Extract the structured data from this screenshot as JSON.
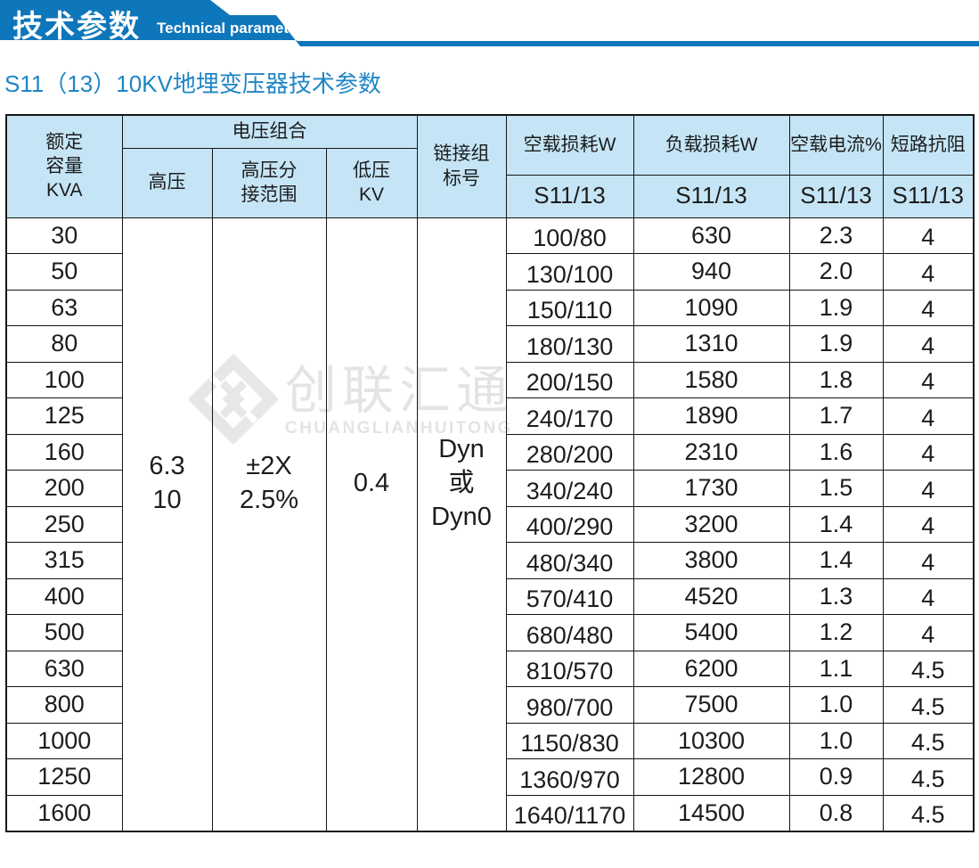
{
  "banner": {
    "title_cn": "技术参数",
    "title_en": "Technical parameter"
  },
  "page_title": "S11（13）10KV地埋变压器技术参数",
  "watermark": {
    "logo": "diamond-logo",
    "text_cn": "创联汇通",
    "text_en": "CHUANGLIANHUITONG"
  },
  "colors": {
    "banner_blue": "#0e76ba",
    "title_blue": "#1e86c6",
    "table_header_bg": "#c5e5f6",
    "border_black": "#151515",
    "watermark_gray": "#e4e4e4"
  },
  "table": {
    "headers": {
      "rated_capacity": "额定\n容量\nKVA",
      "voltage_combination": "电压组合",
      "high_voltage": "高压",
      "hv_tap_range": "高压分\n接范围",
      "low_voltage": "低压\nKV",
      "vector_group": "链接组\n标号",
      "no_load_loss": "空载损耗W",
      "load_loss": "负载损耗W",
      "no_load_current": "空载电流%",
      "impedance": "短路抗阻",
      "series_label": "S11/13"
    },
    "merged": {
      "high_voltage": "6.3\n10",
      "hv_tap_range": "±2X\n2.5%",
      "low_voltage": "0.4",
      "vector_group": "Dyn\n或\nDyn0"
    },
    "row_keys": [
      "capacity",
      "no_load_loss",
      "load_loss",
      "no_load_current",
      "impedance"
    ],
    "rows": [
      {
        "capacity": "30",
        "no_load_loss": "100/80",
        "load_loss": "630",
        "no_load_current": "2.3",
        "impedance": "4"
      },
      {
        "capacity": "50",
        "no_load_loss": "130/100",
        "load_loss": "940",
        "no_load_current": "2.0",
        "impedance": "4"
      },
      {
        "capacity": "63",
        "no_load_loss": "150/110",
        "load_loss": "1090",
        "no_load_current": "1.9",
        "impedance": "4"
      },
      {
        "capacity": "80",
        "no_load_loss": "180/130",
        "load_loss": "1310",
        "no_load_current": "1.9",
        "impedance": "4"
      },
      {
        "capacity": "100",
        "no_load_loss": "200/150",
        "load_loss": "1580",
        "no_load_current": "1.8",
        "impedance": "4"
      },
      {
        "capacity": "125",
        "no_load_loss": "240/170",
        "load_loss": "1890",
        "no_load_current": "1.7",
        "impedance": "4"
      },
      {
        "capacity": "160",
        "no_load_loss": "280/200",
        "load_loss": "2310",
        "no_load_current": "1.6",
        "impedance": "4"
      },
      {
        "capacity": "200",
        "no_load_loss": "340/240",
        "load_loss": "1730",
        "no_load_current": "1.5",
        "impedance": "4"
      },
      {
        "capacity": "250",
        "no_load_loss": "400/290",
        "load_loss": "3200",
        "no_load_current": "1.4",
        "impedance": "4"
      },
      {
        "capacity": "315",
        "no_load_loss": "480/340",
        "load_loss": "3800",
        "no_load_current": "1.4",
        "impedance": "4"
      },
      {
        "capacity": "400",
        "no_load_loss": "570/410",
        "load_loss": "4520",
        "no_load_current": "1.3",
        "impedance": "4"
      },
      {
        "capacity": "500",
        "no_load_loss": "680/480",
        "load_loss": "5400",
        "no_load_current": "1.2",
        "impedance": "4"
      },
      {
        "capacity": "630",
        "no_load_loss": "810/570",
        "load_loss": "6200",
        "no_load_current": "1.1",
        "impedance": "4.5"
      },
      {
        "capacity": "800",
        "no_load_loss": "980/700",
        "load_loss": "7500",
        "no_load_current": "1.0",
        "impedance": "4.5"
      },
      {
        "capacity": "1000",
        "no_load_loss": "1150/830",
        "load_loss": "10300",
        "no_load_current": "1.0",
        "impedance": "4.5"
      },
      {
        "capacity": "1250",
        "no_load_loss": "1360/970",
        "load_loss": "12800",
        "no_load_current": "0.9",
        "impedance": "4.5"
      },
      {
        "capacity": "1600",
        "no_load_loss": "1640/1170",
        "load_loss": "14500",
        "no_load_current": "0.8",
        "impedance": "4.5"
      }
    ]
  }
}
